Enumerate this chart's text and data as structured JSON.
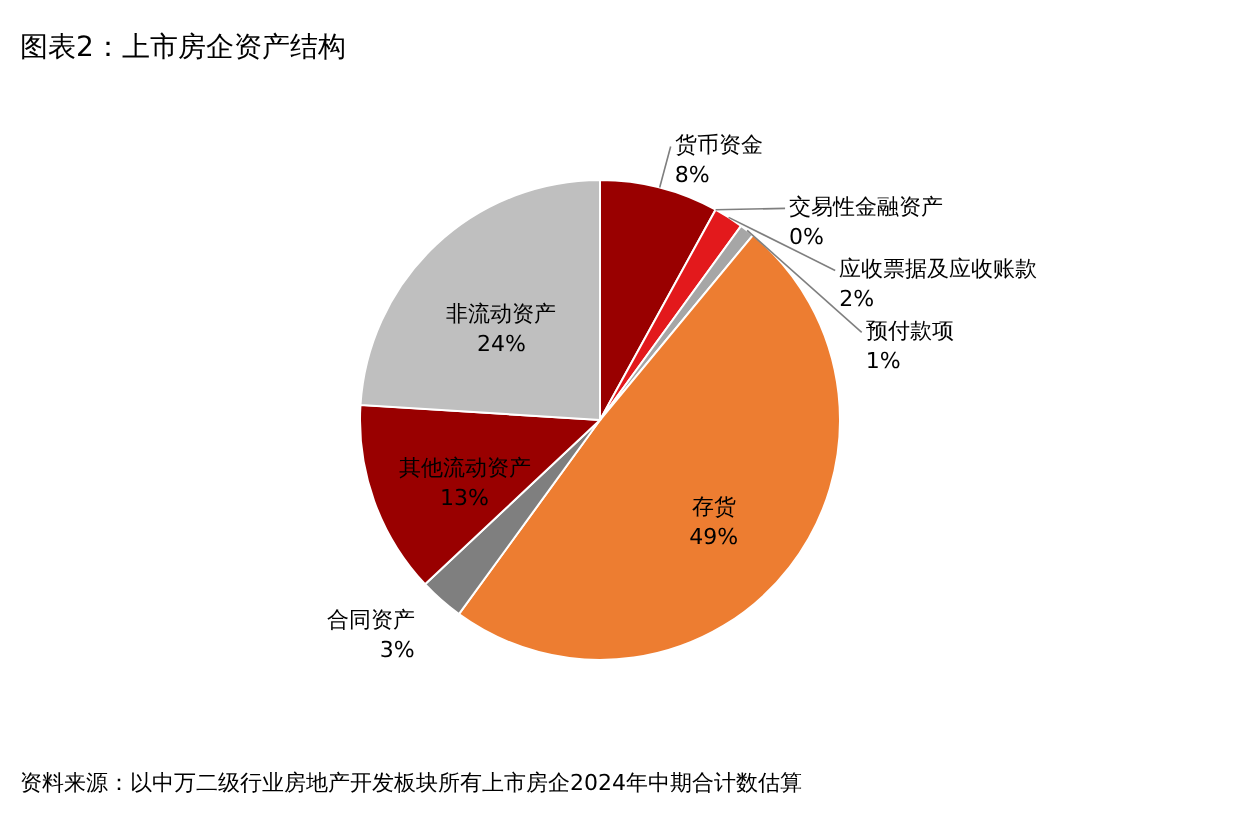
{
  "chart_data": {
    "type": "pie",
    "title": "图表2：上市房企资产结构",
    "categories": [
      "货币资金",
      "交易性金融资产",
      "应收票据及应收账款",
      "预付款项",
      "存货",
      "合同资产",
      "其他流动资产",
      "非流动资产"
    ],
    "values": [
      8,
      0,
      2,
      1,
      49,
      3,
      13,
      24
    ],
    "value_labels": [
      "8%",
      "0%",
      "2%",
      "1%",
      "49%",
      "3%",
      "13%",
      "24%"
    ],
    "colors": [
      "#990000",
      "#c00000",
      "#e3191c",
      "#a6a6a6",
      "#ed7d31",
      "#7f7f7f",
      "#990000",
      "#bfbfbf"
    ],
    "annotations": [
      "资料来源：以中万二级行业房地产开发板块所有上市房企2024年中期合计数估算"
    ]
  }
}
